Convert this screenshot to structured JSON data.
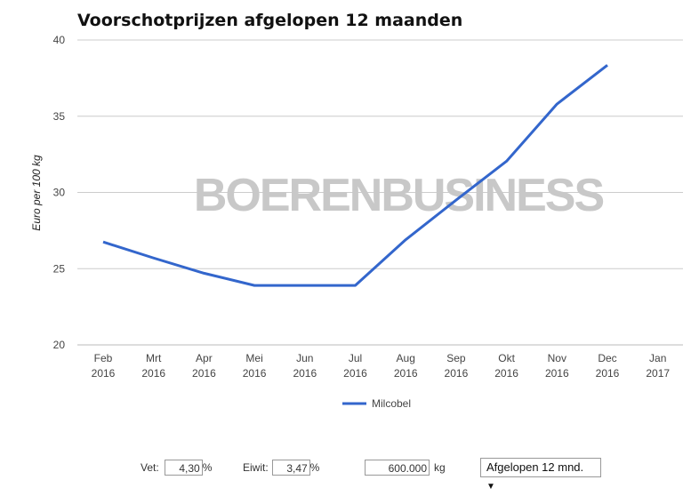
{
  "title": "Voorschotprijzen afgelopen 12 maanden",
  "chart_data": {
    "type": "line",
    "title": "Voorschotprijzen afgelopen 12 maanden",
    "ylabel": "Euro per 100 kg",
    "xlabel": "",
    "ylim": [
      20,
      40
    ],
    "yticks": [
      20,
      25,
      30,
      35,
      40
    ],
    "categories": [
      [
        "Feb",
        "2016"
      ],
      [
        "Mrt",
        "2016"
      ],
      [
        "Apr",
        "2016"
      ],
      [
        "Mei",
        "2016"
      ],
      [
        "Jun",
        "2016"
      ],
      [
        "Jul",
        "2016"
      ],
      [
        "Aug",
        "2016"
      ],
      [
        "Sep",
        "2016"
      ],
      [
        "Okt",
        "2016"
      ],
      [
        "Nov",
        "2016"
      ],
      [
        "Dec",
        "2016"
      ],
      [
        "Jan",
        "2017"
      ]
    ],
    "series": [
      {
        "name": "Milcobel",
        "color": "#3366cc",
        "values": [
          26.75,
          25.7,
          24.7,
          23.9,
          23.9,
          23.9,
          26.9,
          29.5,
          32.05,
          35.8,
          38.35,
          null
        ]
      }
    ],
    "legend": "bottom",
    "grid": true,
    "watermark": "BOERENBUSINESS"
  },
  "controls": {
    "vet_label": "Vet:",
    "vet_value": "4,30",
    "vet_unit": "%",
    "eiwit_label": "Eiwit:",
    "eiwit_value": "3,47",
    "eiwit_unit": "%",
    "kg_value": "600.000",
    "kg_unit": "kg",
    "period": "Afgelopen 12 mnd."
  }
}
